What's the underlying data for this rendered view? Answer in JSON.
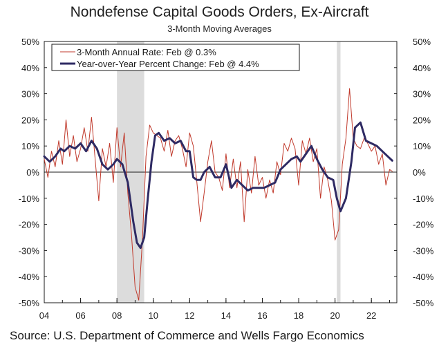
{
  "chart_data": {
    "type": "line",
    "title": "Nondefense Capital Goods Orders, Ex-Aircraft",
    "subtitle": "3-Month Moving Averages",
    "source": "Source: U.S. Department of Commerce and Wells Fargo Economics",
    "ylim": [
      -50,
      50
    ],
    "xlim": [
      2004,
      2023.4
    ],
    "y_ticks": [
      50,
      40,
      30,
      20,
      10,
      0,
      -10,
      -20,
      -30,
      -40,
      -50
    ],
    "y_tick_labels": [
      "50%",
      "40%",
      "30%",
      "20%",
      "10%",
      "0%",
      "-10%",
      "-20%",
      "-30%",
      "-40%",
      "-50%"
    ],
    "x_ticks": [
      2004,
      2006,
      2008,
      2010,
      2012,
      2014,
      2016,
      2018,
      2020,
      2022
    ],
    "x_tick_labels": [
      "04",
      "06",
      "08",
      "10",
      "12",
      "14",
      "16",
      "18",
      "20",
      "22"
    ],
    "recessions": [
      {
        "start": 2008.0,
        "end": 2009.5
      },
      {
        "start": 2020.1,
        "end": 2020.3
      }
    ],
    "legend": {
      "position": "top-left"
    },
    "series": [
      {
        "name": "3-Month Annual Rate: Feb @ 0.3%",
        "color": "#c0392b",
        "x": [
          2004.0,
          2004.2,
          2004.4,
          2004.6,
          2004.8,
          2005.0,
          2005.2,
          2005.4,
          2005.6,
          2005.8,
          2006.0,
          2006.2,
          2006.4,
          2006.6,
          2006.8,
          2007.0,
          2007.2,
          2007.4,
          2007.6,
          2007.8,
          2008.0,
          2008.2,
          2008.4,
          2008.6,
          2008.8,
          2009.0,
          2009.2,
          2009.4,
          2009.6,
          2009.8,
          2010.0,
          2010.2,
          2010.4,
          2010.6,
          2010.8,
          2011.0,
          2011.2,
          2011.4,
          2011.6,
          2011.8,
          2012.0,
          2012.2,
          2012.4,
          2012.6,
          2012.8,
          2013.0,
          2013.2,
          2013.4,
          2013.6,
          2013.8,
          2014.0,
          2014.2,
          2014.4,
          2014.6,
          2014.8,
          2015.0,
          2015.2,
          2015.4,
          2015.6,
          2015.8,
          2016.0,
          2016.2,
          2016.4,
          2016.6,
          2016.8,
          2017.0,
          2017.2,
          2017.4,
          2017.6,
          2017.8,
          2018.0,
          2018.2,
          2018.4,
          2018.6,
          2018.8,
          2019.0,
          2019.2,
          2019.4,
          2019.6,
          2019.8,
          2020.0,
          2020.2,
          2020.4,
          2020.6,
          2020.8,
          2021.0,
          2021.2,
          2021.4,
          2021.6,
          2021.8,
          2022.0,
          2022.2,
          2022.4,
          2022.6,
          2022.8,
          2023.0,
          2023.15
        ],
        "values": [
          5,
          -2,
          8,
          2,
          12,
          3,
          20,
          6,
          14,
          4,
          9,
          17,
          8,
          21,
          5,
          -11,
          9,
          2,
          11,
          -4,
          17,
          2,
          15,
          -8,
          -24,
          -44,
          -49,
          -26,
          6,
          18,
          15,
          14,
          13,
          8,
          16,
          6,
          12,
          14,
          9,
          2,
          15,
          10,
          -4,
          -19,
          -8,
          4,
          12,
          0,
          -2,
          -7,
          7,
          -6,
          5,
          -6,
          4,
          -19,
          1,
          -8,
          6,
          -5,
          -2,
          -10,
          -3,
          -8,
          4,
          -1,
          11,
          8,
          13,
          9,
          -5,
          12,
          7,
          13,
          4,
          9,
          -10,
          2,
          -3,
          -11,
          -26,
          -22,
          3,
          13,
          32,
          13,
          10,
          9,
          13,
          11,
          8,
          10,
          3,
          7,
          -5,
          1,
          0.3
        ]
      },
      {
        "name": "Year-over-Year Percent Change: Feb @ 4.4%",
        "color": "#2e2a63",
        "x": [
          2004.0,
          2004.3,
          2004.6,
          2004.9,
          2005.1,
          2005.4,
          2005.7,
          2006.0,
          2006.3,
          2006.6,
          2006.9,
          2007.2,
          2007.5,
          2007.8,
          2008.0,
          2008.3,
          2008.6,
          2008.9,
          2009.1,
          2009.3,
          2009.5,
          2009.7,
          2009.9,
          2010.1,
          2010.3,
          2010.6,
          2010.9,
          2011.2,
          2011.5,
          2011.8,
          2012.0,
          2012.2,
          2012.4,
          2012.6,
          2012.8,
          2013.1,
          2013.4,
          2013.7,
          2014.0,
          2014.3,
          2014.6,
          2014.9,
          2015.2,
          2015.5,
          2015.8,
          2016.1,
          2016.4,
          2016.7,
          2017.0,
          2017.3,
          2017.6,
          2017.9,
          2018.1,
          2018.4,
          2018.7,
          2019.0,
          2019.3,
          2019.6,
          2019.9,
          2020.1,
          2020.3,
          2020.6,
          2020.9,
          2021.1,
          2021.4,
          2021.7,
          2022.0,
          2022.3,
          2022.6,
          2022.9,
          2023.15
        ],
        "values": [
          6,
          4,
          6,
          9,
          8,
          10,
          9,
          11,
          8,
          12,
          9,
          3,
          1,
          3,
          5,
          3,
          -4,
          -19,
          -27,
          -29,
          -25,
          -10,
          4,
          14,
          15,
          12,
          13,
          11,
          12,
          8,
          8,
          -2,
          -3,
          -3,
          0,
          2,
          -2,
          -2,
          3,
          -6,
          -3,
          -5,
          -7,
          -6,
          -6,
          -6,
          -5,
          -4,
          1,
          3,
          5,
          6,
          4,
          7,
          10,
          5,
          1,
          -2,
          -3,
          -10,
          -15,
          -10,
          4,
          17,
          19,
          12,
          11,
          10,
          8,
          6,
          4.4
        ]
      }
    ]
  }
}
